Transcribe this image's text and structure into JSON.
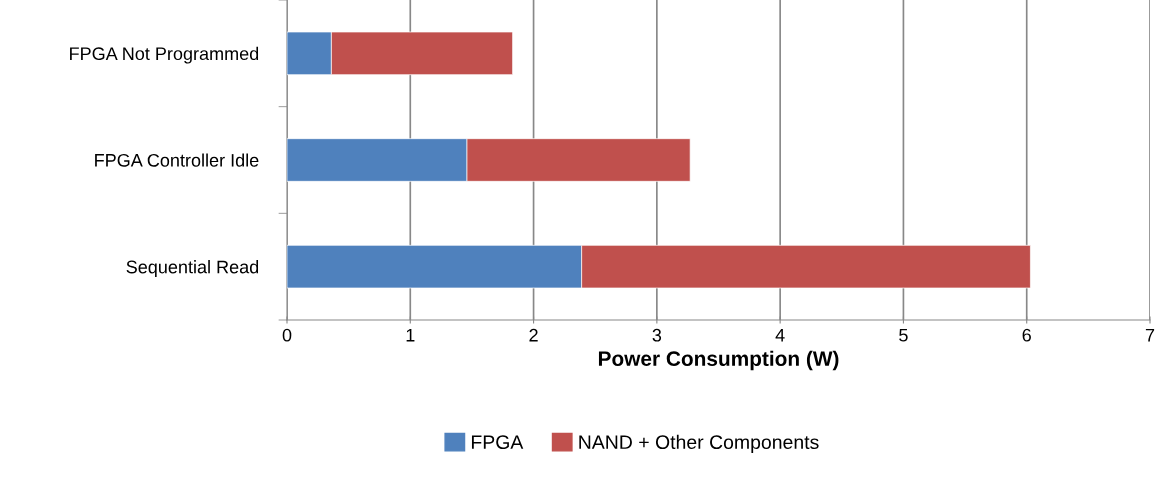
{
  "chart_data": {
    "type": "bar",
    "orientation": "horizontal",
    "stacked": true,
    "categories": [
      "FPGA Not Programmed",
      "FPGA Controller Idle",
      "Sequential Read"
    ],
    "series": [
      {
        "name": "FPGA",
        "color": "#4f81bd",
        "values": [
          0.36,
          1.46,
          2.39
        ]
      },
      {
        "name": "NAND + Other Components",
        "color": "#c0504d",
        "values": [
          1.47,
          1.81,
          3.64
        ]
      }
    ],
    "xlabel": "Power Consumption (W)",
    "xlim": [
      0,
      7
    ],
    "xticks": [
      0,
      1,
      2,
      3,
      4,
      5,
      6,
      7
    ],
    "grid": "x",
    "legend": "bottom"
  }
}
